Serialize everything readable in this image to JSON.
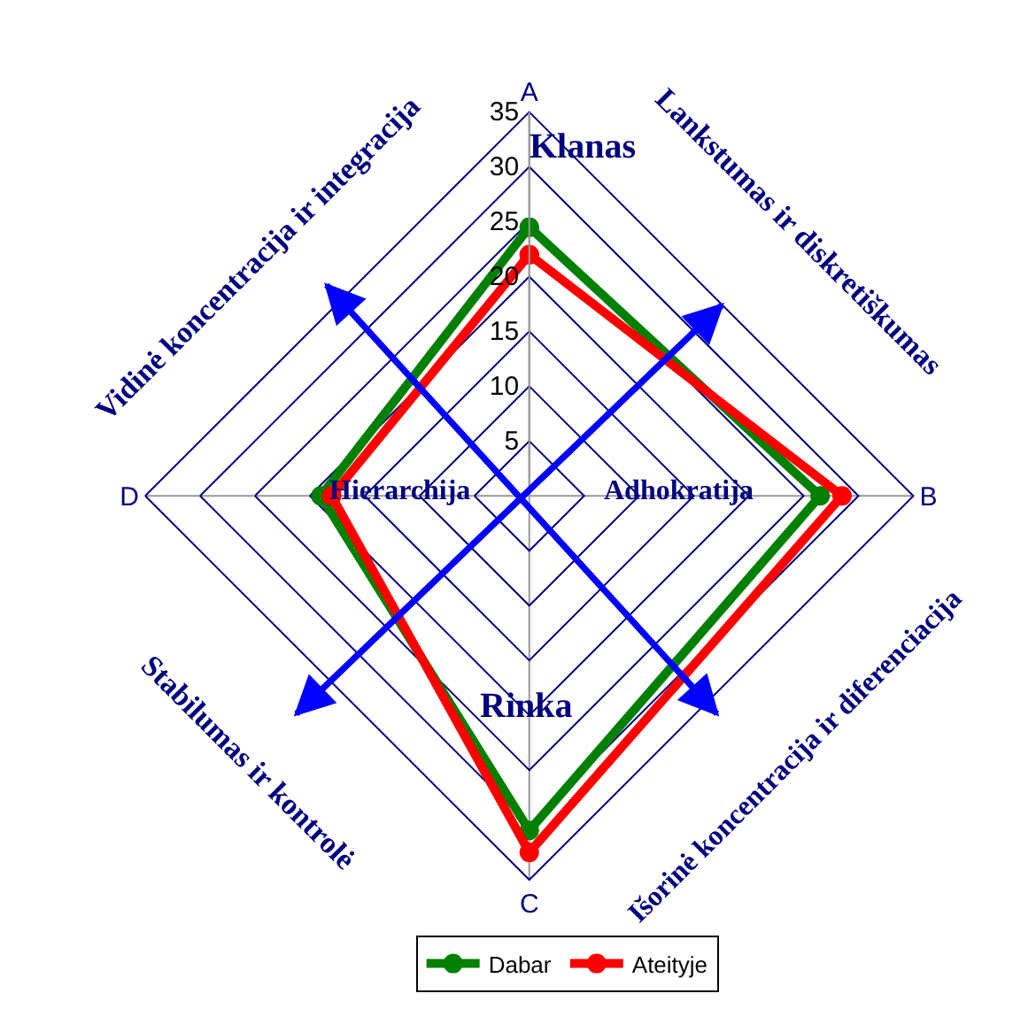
{
  "chart_data": {
    "type": "radar",
    "categories": [
      "A",
      "B",
      "C",
      "D"
    ],
    "series": [
      {
        "name": "Dabar",
        "color": "#008000",
        "values": [
          24.5,
          26.5,
          30.5,
          19
        ]
      },
      {
        "name": "Ateityje",
        "color": "#ff0000",
        "values": [
          22,
          28.5,
          32.5,
          18
        ]
      }
    ],
    "ylim": [
      0,
      35
    ],
    "yticks": [
      5,
      10,
      15,
      20,
      25,
      30,
      35
    ],
    "annotations": [
      "Klanas",
      "Adhokratija",
      "Rinka",
      "Hierarchija",
      "Vidinė koncentracija ir integracija",
      "Lankstumas ir diskretiškumas",
      "Stabilumas ir kontrolė",
      "Išorinė koncentracija ir diferenciacija"
    ],
    "legend": "bottom",
    "marker": "circle",
    "line_style": "solid",
    "grid": true
  }
}
